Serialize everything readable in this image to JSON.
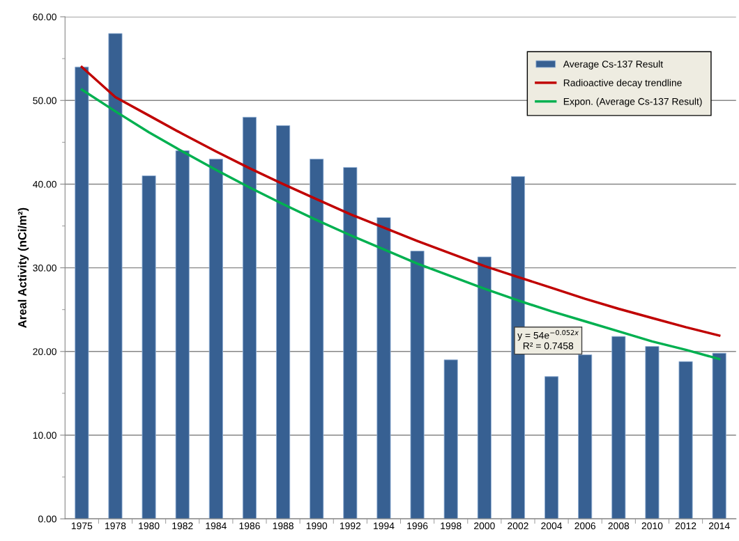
{
  "chart_data": {
    "type": "bar",
    "ylabel": "Areal Activity (nCi/m²)",
    "categories": [
      "1975",
      "1978",
      "1980",
      "1982",
      "1984",
      "1986",
      "1988",
      "1990",
      "1992",
      "1994",
      "1996",
      "1998",
      "2000",
      "2002",
      "2004",
      "2006",
      "2008",
      "2010",
      "2012",
      "2014"
    ],
    "series": [
      {
        "name": "Average Cs-137 Result",
        "color": "#376092",
        "values": [
          54.0,
          58.0,
          41.0,
          44.0,
          43.0,
          48.0,
          47.0,
          43.0,
          42.0,
          36.0,
          32.0,
          19.0,
          31.3,
          40.9,
          17.0,
          19.6,
          21.8,
          20.6,
          18.8,
          19.8
        ]
      },
      {
        "name": "Radioactive decay trendline",
        "type": "line",
        "color": "#c00000",
        "values": [
          54.0,
          50.4,
          48.2,
          46.0,
          43.9,
          41.9,
          40.0,
          38.2,
          36.4,
          34.8,
          33.2,
          31.7,
          30.2,
          28.9,
          27.6,
          26.3,
          25.1,
          24.0,
          22.9,
          21.9
        ]
      },
      {
        "name": "Expon. (Average Cs-137 Result)",
        "type": "line",
        "color": "#00b050",
        "values": [
          51.3,
          48.7,
          46.2,
          43.9,
          41.7,
          39.6,
          37.6,
          35.7,
          33.9,
          32.2,
          30.5,
          29.0,
          27.5,
          26.1,
          24.8,
          23.6,
          22.4,
          21.2,
          20.2,
          19.1
        ]
      }
    ],
    "annotations": [
      "y = 54e$^{−0.052x}$\nR² = 0.7458"
    ],
    "ylim": [
      0,
      60
    ],
    "yticks": [
      {
        "value": 0,
        "label": "0.00"
      },
      {
        "value": 5,
        "label": null
      },
      {
        "value": 10,
        "label": "10.00"
      },
      {
        "value": 15,
        "label": null
      },
      {
        "value": 20,
        "label": "20.00"
      },
      {
        "value": 25,
        "label": null
      },
      {
        "value": 30,
        "label": "30.00"
      },
      {
        "value": 35,
        "label": null
      },
      {
        "value": 40,
        "label": "40.00"
      },
      {
        "value": 45,
        "label": null
      },
      {
        "value": 50,
        "label": "50.00"
      },
      {
        "value": 55,
        "label": null
      },
      {
        "value": 60,
        "label": "60.00"
      }
    ],
    "grid": "y",
    "legend": "top right",
    "line_style": "solid",
    "marker": "none"
  }
}
